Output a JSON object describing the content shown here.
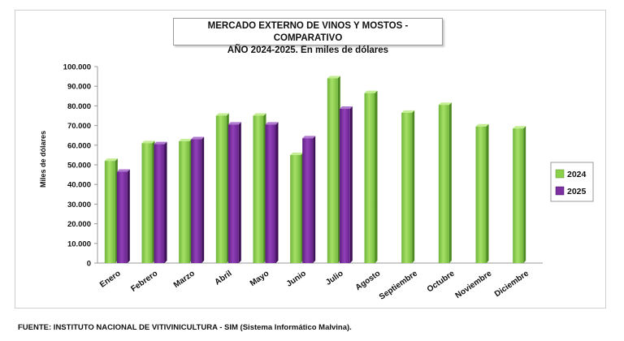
{
  "chart_data": {
    "type": "bar",
    "title_line1": "MERCADO EXTERNO DE VINOS Y MOSTOS - COMPARATIVO",
    "title_line2": "AÑO 2024-2025. En miles de dólares",
    "ylabel": "Miles de dólares",
    "xlabel": "",
    "ylim": [
      0,
      100000
    ],
    "y_ticks": [
      "0",
      "10.000",
      "20.000",
      "30.000",
      "40.000",
      "50.000",
      "60.000",
      "70.000",
      "80.000",
      "90.000",
      "100.000"
    ],
    "y_tick_values": [
      0,
      10000,
      20000,
      30000,
      40000,
      50000,
      60000,
      70000,
      80000,
      90000,
      100000
    ],
    "categories": [
      "Enero",
      "Febrero",
      "Marzo",
      "Abril",
      "Mayo",
      "Junio",
      "Julio",
      "Agosto",
      "Septiembre",
      "Octubre",
      "Noviembre",
      "Diciembre"
    ],
    "series": [
      {
        "name": "2024",
        "color": "#8bd04a",
        "values": [
          52000,
          61000,
          62000,
          75000,
          75000,
          55000,
          94000,
          86500,
          76500,
          80500,
          69500,
          68500
        ]
      },
      {
        "name": "2025",
        "color": "#7b2fa0",
        "values": [
          46500,
          60500,
          63000,
          70500,
          70500,
          63500,
          78500,
          null,
          null,
          null,
          null,
          null
        ]
      }
    ],
    "legend_position": "right",
    "grid": false
  },
  "footer": "FUENTE: INSTITUTO NACIONAL DE VITIVINICULTURA - SIM (Sistema Informático Malvina)."
}
